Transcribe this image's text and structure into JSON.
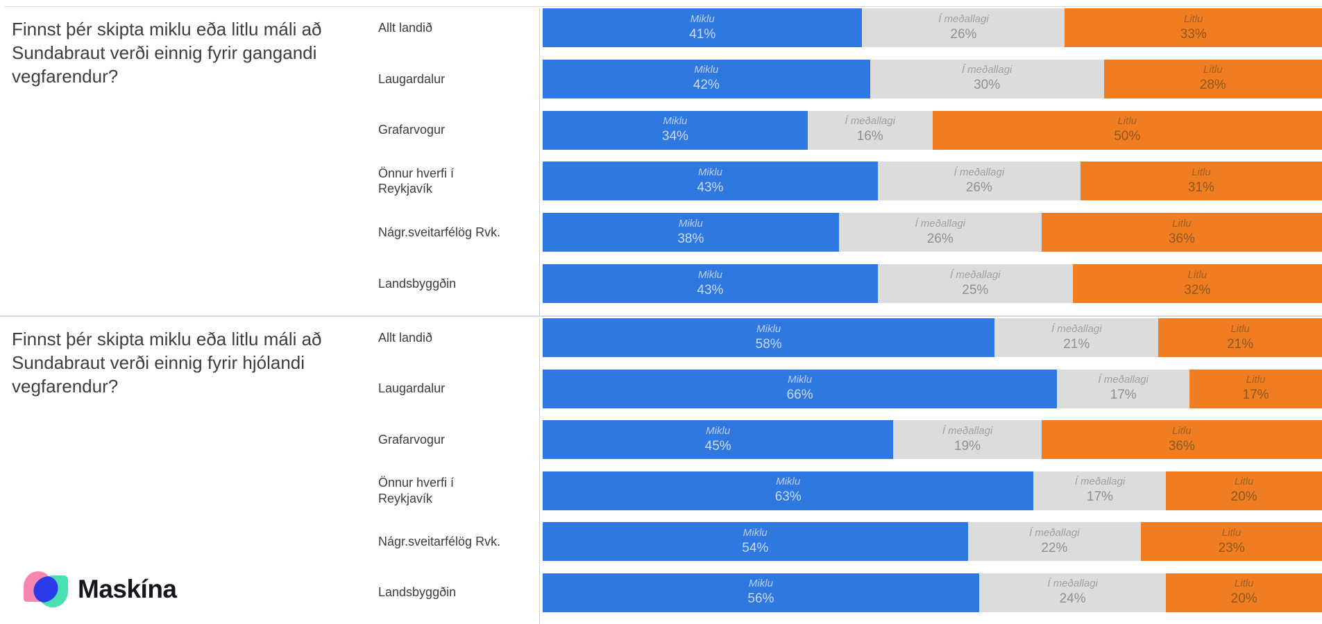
{
  "unit": "%",
  "series": [
    {
      "key": "miklu",
      "label": "Miklu",
      "color": "#2F78E0",
      "label_color": "#BFCFEB",
      "value_color": "#CDDBF3"
    },
    {
      "key": "i-medallagi",
      "label": "Í meðallagi",
      "color": "#DCDCDC",
      "label_color": "#9F9F9F",
      "value_color": "#8F8F8F"
    },
    {
      "key": "litlu",
      "label": "Litlu",
      "color": "#F07D21",
      "label_color": "#9E6124",
      "value_color": "#8F571C"
    }
  ],
  "blocks": [
    {
      "question": "Finnst þér skipta miklu eða litlu máli að Sundabraut verði einnig fyrir gangandi vegfarendur?",
      "rows": [
        {
          "label": "Allt landið",
          "values": [
            41,
            26,
            33
          ]
        },
        {
          "label": "Laugardalur",
          "values": [
            42,
            30,
            28
          ]
        },
        {
          "label": "Grafarvogur",
          "values": [
            34,
            16,
            50
          ]
        },
        {
          "label": "Önnur hverfi í Reykjavík",
          "values": [
            43,
            26,
            31
          ]
        },
        {
          "label": "Nágr.sveitarfélög Rvk.",
          "values": [
            38,
            26,
            36
          ]
        },
        {
          "label": "Landsbyggðin",
          "values": [
            43,
            25,
            32
          ]
        }
      ]
    },
    {
      "question": "Finnst þér skipta miklu eða litlu máli að Sundabraut verði einnig fyrir hjólandi vegfarendur?",
      "rows": [
        {
          "label": "Allt landið",
          "values": [
            58,
            21,
            21
          ]
        },
        {
          "label": "Laugardalur",
          "values": [
            66,
            17,
            17
          ]
        },
        {
          "label": "Grafarvogur",
          "values": [
            45,
            19,
            36
          ]
        },
        {
          "label": "Önnur hverfi í Reykjavík",
          "values": [
            63,
            17,
            20
          ]
        },
        {
          "label": "Nágr.sveitarfélög Rvk.",
          "values": [
            54,
            22,
            23
          ]
        },
        {
          "label": "Landsbyggðin",
          "values": [
            56,
            24,
            20
          ]
        }
      ]
    }
  ],
  "brand": {
    "name": "Maskína",
    "colors": {
      "pink": "#F687B0",
      "mint": "#4BE0B2",
      "blue": "#2B3BE8",
      "text": "#15151F"
    }
  },
  "chart_data": [
    {
      "type": "bar",
      "orientation": "horizontal",
      "stacked": true,
      "title": "Finnst þér skipta miklu eða litlu máli að Sundabraut verði einnig fyrir gangandi vegfarendur?",
      "categories": [
        "Allt landið",
        "Laugardalur",
        "Grafarvogur",
        "Önnur hverfi í Reykjavík",
        "Nágr.sveitarfélög Rvk.",
        "Landsbyggðin"
      ],
      "series": [
        {
          "name": "Miklu",
          "values": [
            41,
            42,
            34,
            43,
            38,
            43
          ]
        },
        {
          "name": "Í meðallagi",
          "values": [
            26,
            30,
            16,
            26,
            26,
            25
          ]
        },
        {
          "name": "Litlu",
          "values": [
            33,
            28,
            50,
            31,
            36,
            32
          ]
        }
      ],
      "unit": "%",
      "xlim": [
        0,
        100
      ],
      "grid": false,
      "legend": "series names annotated inside each bar segment"
    },
    {
      "type": "bar",
      "orientation": "horizontal",
      "stacked": true,
      "title": "Finnst þér skipta miklu eða litlu máli að Sundabraut verði einnig fyrir hjólandi vegfarendur?",
      "categories": [
        "Allt landið",
        "Laugardalur",
        "Grafarvogur",
        "Önnur hverfi í Reykjavík",
        "Nágr.sveitarfélög Rvk.",
        "Landsbyggðin"
      ],
      "series": [
        {
          "name": "Miklu",
          "values": [
            58,
            66,
            45,
            63,
            54,
            56
          ]
        },
        {
          "name": "Í meðallagi",
          "values": [
            21,
            17,
            19,
            17,
            22,
            24
          ]
        },
        {
          "name": "Litlu",
          "values": [
            21,
            17,
            36,
            20,
            23,
            20
          ]
        }
      ],
      "unit": "%",
      "xlim": [
        0,
        100
      ],
      "grid": false,
      "legend": "series names annotated inside each bar segment"
    }
  ]
}
